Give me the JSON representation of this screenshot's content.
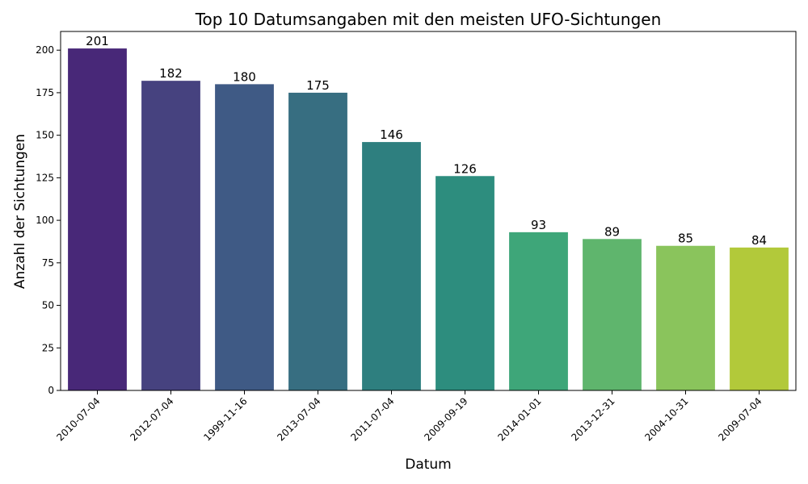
{
  "chart_data": {
    "type": "bar",
    "title": "Top 10 Datumsangaben mit den meisten UFO-Sichtungen",
    "xlabel": "Datum",
    "ylabel": "Anzahl der Sichtungen",
    "categories": [
      "2010-07-04",
      "2012-07-04",
      "1999-11-16",
      "2013-07-04",
      "2011-07-04",
      "2009-09-19",
      "2014-01-01",
      "2013-12-31",
      "2004-10-31",
      "2009-07-04"
    ],
    "values": [
      201,
      182,
      180,
      175,
      146,
      126,
      93,
      89,
      85,
      84
    ],
    "colors": [
      "#482878",
      "#46427f",
      "#3f5a85",
      "#376e81",
      "#2e7f7f",
      "#2d8d7e",
      "#3ea679",
      "#5fb56d",
      "#8ac45c",
      "#b2c93a"
    ],
    "yticks": [
      0,
      25,
      50,
      75,
      100,
      125,
      150,
      175,
      200
    ],
    "ylim": [
      0,
      211
    ],
    "grid": false,
    "legend": "none"
  }
}
